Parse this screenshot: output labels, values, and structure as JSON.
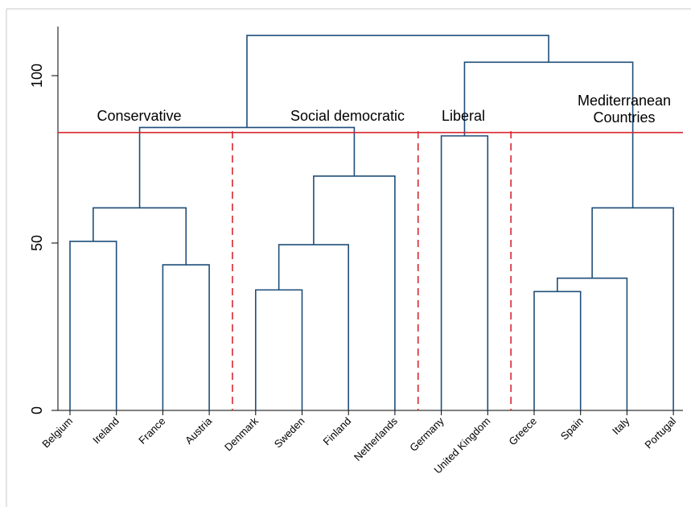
{
  "chart_data": {
    "type": "dendrogram",
    "y_ticks": [
      0,
      50,
      100
    ],
    "ylim": [
      0,
      115
    ],
    "leaves": [
      "Belgium",
      "Ireland",
      "France",
      "Austria",
      "Denmark",
      "Sweden",
      "Finland",
      "Netherlands",
      "Germany",
      "United Kingdom",
      "Greece",
      "Spain",
      "Italy",
      "Portugal"
    ],
    "merges": [
      {
        "left": "Belgium",
        "right": "Ireland",
        "height": 50.5
      },
      {
        "left": "France",
        "right": "Austria",
        "height": 43.5
      },
      {
        "left": "Belgium+Ireland",
        "right": "France+Austria",
        "height": 60.5
      },
      {
        "left": "Denmark",
        "right": "Sweden",
        "height": 36.0
      },
      {
        "left": "Denmark+Sweden",
        "right": "Finland",
        "height": 49.5
      },
      {
        "left": "Denmark+Sweden+Finland",
        "right": "Netherlands",
        "height": 70.0
      },
      {
        "left": "Conservative",
        "right": "Social democratic",
        "height": 84.5
      },
      {
        "left": "Germany",
        "right": "United Kingdom",
        "height": 82.0
      },
      {
        "left": "Greece",
        "right": "Spain",
        "height": 35.5
      },
      {
        "left": "Greece+Spain",
        "right": "Italy",
        "height": 39.5
      },
      {
        "left": "Greece+Spain+Italy",
        "right": "Portugal",
        "height": 60.5
      },
      {
        "left": "Germany+United Kingdom",
        "right": "Mediterranean",
        "height": 104.0
      },
      {
        "left": "Conservative+Social democratic",
        "right": "Liberal+Mediterranean",
        "height": 112.0
      }
    ],
    "cut_height": 83,
    "cut_color": "#d7262f",
    "line_color": "#1f4e79",
    "separators_after_leaf": [
      3,
      7,
      9
    ],
    "groups": [
      {
        "lines": [
          "Conservative"
        ]
      },
      {
        "lines": [
          "Social democratic"
        ]
      },
      {
        "lines": [
          "Liberal"
        ]
      },
      {
        "lines": [
          "Mediterranean",
          "Countries"
        ]
      }
    ]
  }
}
